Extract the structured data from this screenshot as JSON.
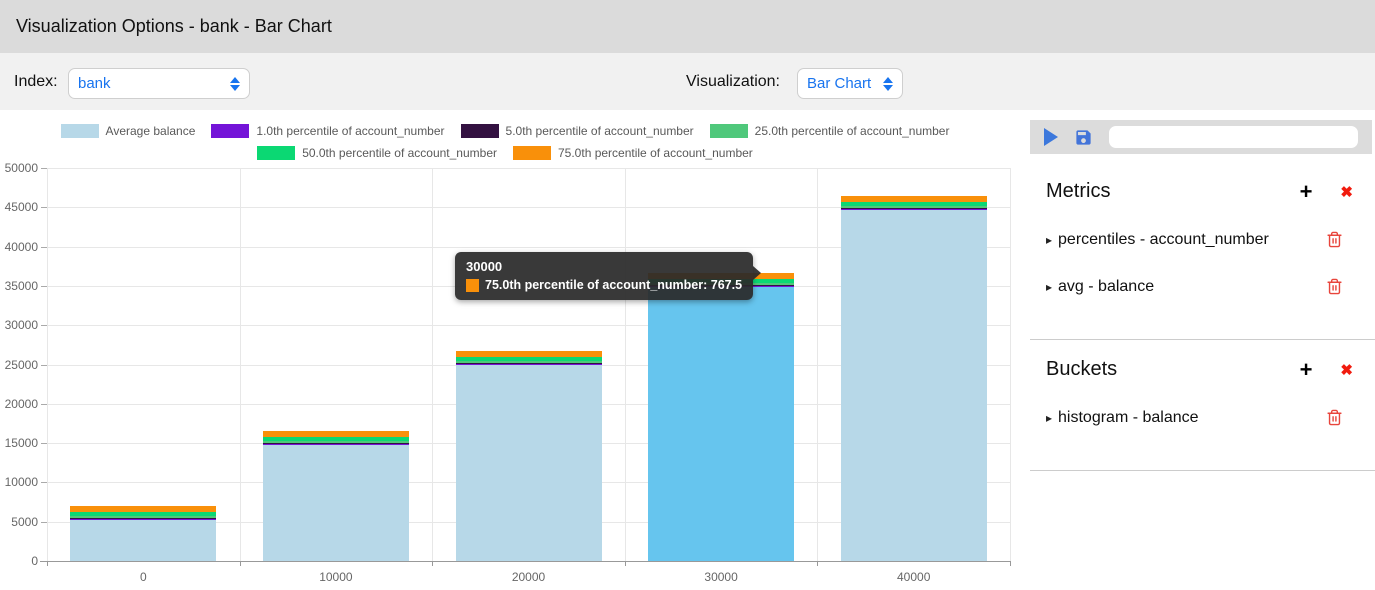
{
  "title_bar": {
    "title": "Visualization Options - bank - Bar Chart"
  },
  "controls": {
    "index_label": "Index:",
    "index_value": "bank",
    "visualization_label": "Visualization:",
    "visualization_value": "Bar Chart"
  },
  "sidebar": {
    "toolbar": {
      "input_value": ""
    },
    "sections": [
      {
        "title": "Metrics",
        "items": [
          {
            "label": "percentiles - account_number"
          },
          {
            "label": "avg - balance"
          }
        ]
      },
      {
        "title": "Buckets",
        "items": [
          {
            "label": "histogram - balance"
          }
        ]
      }
    ]
  },
  "icons": {
    "plus": "+",
    "close": "✖",
    "caret": "▸"
  },
  "tooltip": {
    "header": "30000",
    "line": "75.0th percentile of account_number: 767.5",
    "swatch_color": "#f9900a"
  },
  "chart_data": {
    "type": "bar",
    "stacked": true,
    "title": "",
    "xlabel": "",
    "ylabel": "",
    "categories": [
      "0",
      "10000",
      "20000",
      "30000",
      "40000"
    ],
    "series": [
      {
        "name": "Average balance",
        "color": "#b7d8e8",
        "values": [
          5200,
          14700,
          24900,
          34800,
          44700
        ]
      },
      {
        "name": "1.0th percentile of account_number",
        "color": "#7414d8",
        "values": [
          10,
          10,
          10,
          10,
          10
        ]
      },
      {
        "name": "5.0th percentile of account_number",
        "color": "#331141",
        "values": [
          50,
          50,
          50,
          50,
          50
        ]
      },
      {
        "name": "25.0th percentile of account_number",
        "color": "#4fc87b",
        "values": [
          250,
          250,
          250,
          250,
          250
        ]
      },
      {
        "name": "50.0th percentile of account_number",
        "color": "#0bd873",
        "values": [
          500,
          500,
          500,
          500,
          500
        ]
      },
      {
        "name": "75.0th percentile of account_number",
        "color": "#f9900a",
        "values": [
          767.5,
          767.5,
          767.5,
          767.5,
          767.5
        ]
      }
    ],
    "ylim": [
      0,
      50000
    ],
    "yticks": [
      0,
      5000,
      10000,
      15000,
      20000,
      25000,
      30000,
      35000,
      40000,
      45000,
      50000
    ],
    "grid": true,
    "legend_position": "top",
    "legend_rows": [
      [
        0,
        1,
        2,
        3
      ],
      [
        4,
        5
      ]
    ],
    "highlighted_category_index": 3,
    "highlight_color": "#66c5ee"
  }
}
